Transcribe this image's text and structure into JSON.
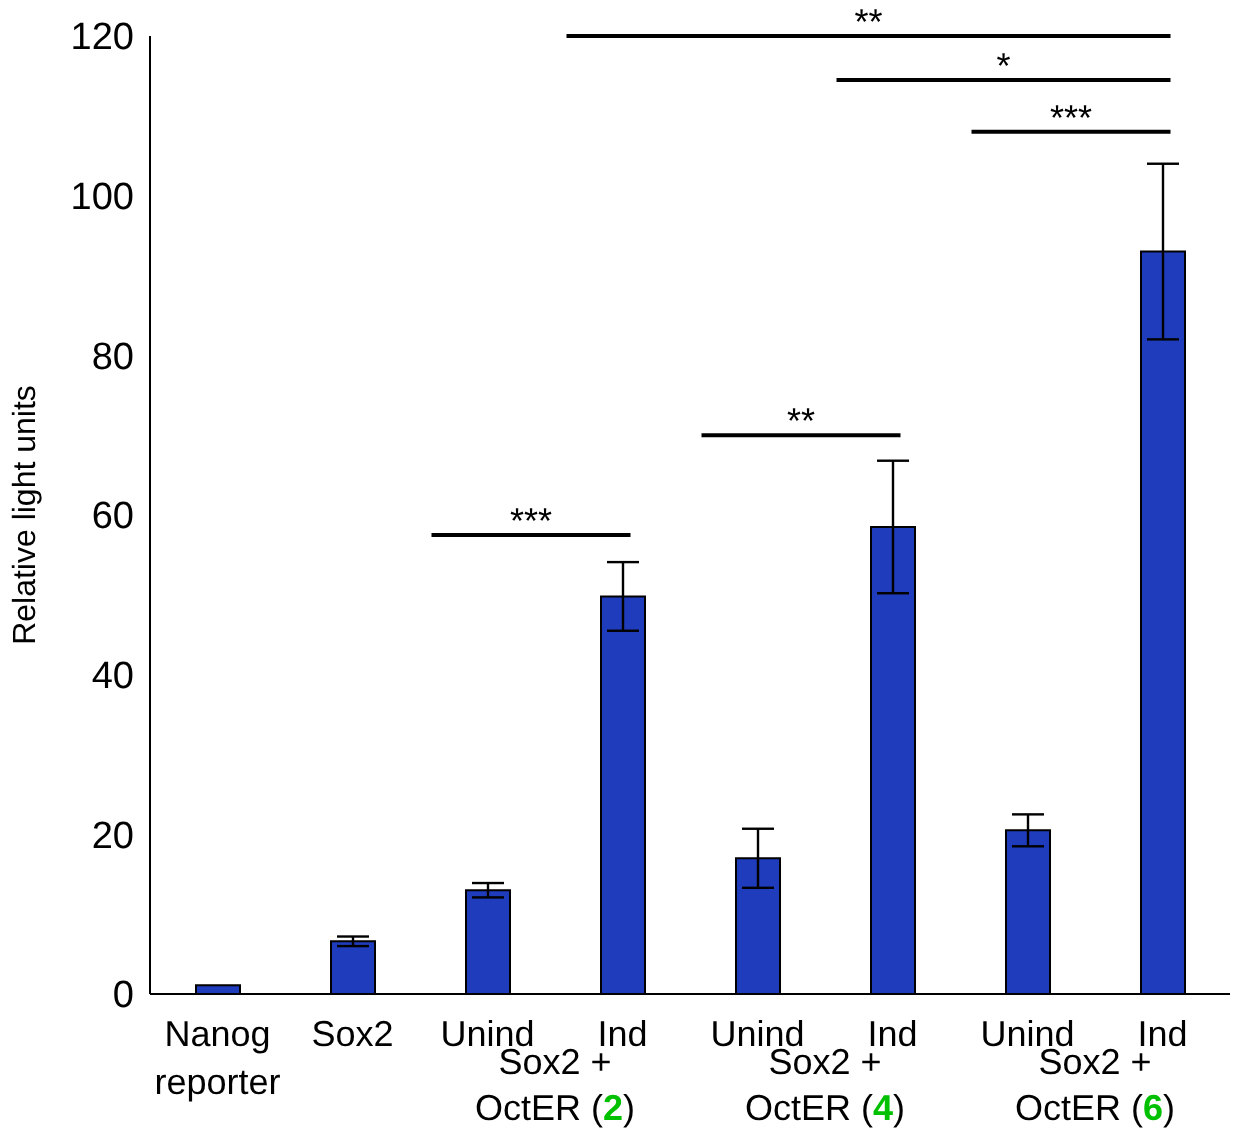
{
  "chart_data": {
    "type": "bar",
    "ylabel": "Relative light units",
    "categories": [
      "Nanog reporter",
      "Sox2",
      "Unind",
      "Ind",
      "Unind",
      "Ind",
      "Unind",
      "Ind"
    ],
    "values": [
      1.1,
      6.6,
      13,
      49.8,
      17,
      58.5,
      20.5,
      93
    ],
    "errors": [
      null,
      0.6,
      0.9,
      4.3,
      3.7,
      8.3,
      2,
      11
    ],
    "color": "#1f3cbc",
    "ylim": [
      0,
      120
    ],
    "yticks": [
      0,
      20,
      40,
      60,
      80,
      100,
      120
    ],
    "grid": false,
    "annotations": [
      "***",
      "**",
      "***",
      "*",
      "**",
      "Sox2 + OctER (2)",
      "Sox2 + OctER (4)",
      "Sox2 + OctER (6)"
    ]
  }
}
